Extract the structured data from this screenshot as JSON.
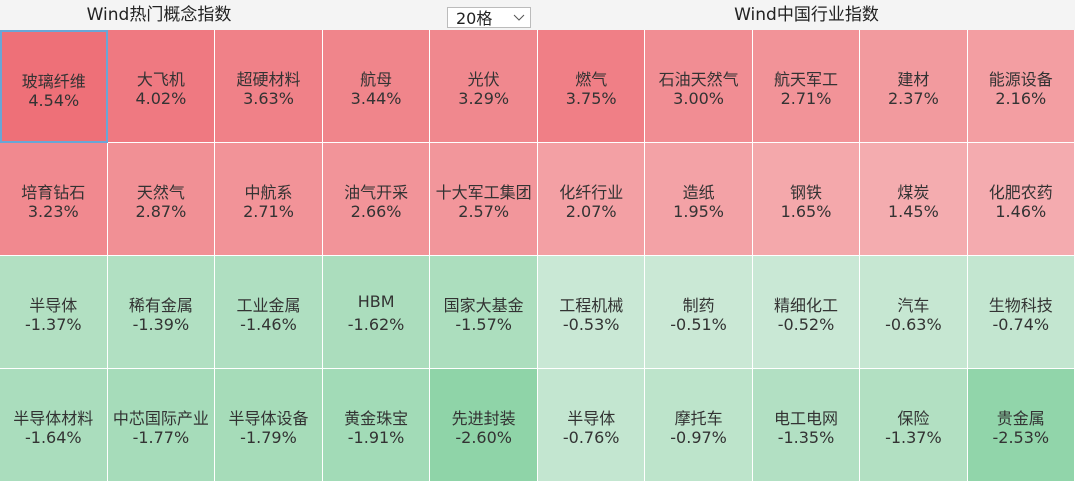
{
  "left_panel": {
    "title": "Wind热门概念指数",
    "dropdown": "20格",
    "cells": [
      {
        "name": "玻璃纤维",
        "change": "4.54%"
      },
      {
        "name": "大飞机",
        "change": "4.02%"
      },
      {
        "name": "超硬材料",
        "change": "3.63%"
      },
      {
        "name": "航母",
        "change": "3.44%"
      },
      {
        "name": "光伏",
        "change": "3.29%"
      },
      {
        "name": "培育钻石",
        "change": "3.23%"
      },
      {
        "name": "天然气",
        "change": "2.87%"
      },
      {
        "name": "中航系",
        "change": "2.71%"
      },
      {
        "name": "油气开采",
        "change": "2.66%"
      },
      {
        "name": "十大军工集团",
        "change": "2.57%"
      },
      {
        "name": "半导体",
        "change": "-1.37%"
      },
      {
        "name": "稀有金属",
        "change": "-1.39%"
      },
      {
        "name": "工业金属",
        "change": "-1.46%"
      },
      {
        "name": "HBM",
        "change": "-1.62%"
      },
      {
        "name": "国家大基金",
        "change": "-1.57%"
      },
      {
        "name": "半导体材料",
        "change": "-1.64%"
      },
      {
        "name": "中芯国际产业",
        "change": "-1.77%"
      },
      {
        "name": "半导体设备",
        "change": "-1.79%"
      },
      {
        "name": "黄金珠宝",
        "change": "-1.91%"
      },
      {
        "name": "先进封装",
        "change": "-2.60%"
      }
    ]
  },
  "right_panel": {
    "title": "Wind中国行业指数",
    "cells": [
      {
        "name": "燃气",
        "change": "3.75%"
      },
      {
        "name": "石油天然气",
        "change": "3.00%"
      },
      {
        "name": "航天军工",
        "change": "2.71%"
      },
      {
        "name": "建材",
        "change": "2.37%"
      },
      {
        "name": "能源设备",
        "change": "2.16%"
      },
      {
        "name": "化纤行业",
        "change": "2.07%"
      },
      {
        "name": "造纸",
        "change": "1.95%"
      },
      {
        "name": "钢铁",
        "change": "1.65%"
      },
      {
        "name": "煤炭",
        "change": "1.45%"
      },
      {
        "name": "化肥农药",
        "change": "1.46%"
      },
      {
        "name": "工程机械",
        "change": "-0.53%"
      },
      {
        "name": "制药",
        "change": "-0.51%"
      },
      {
        "name": "精细化工",
        "change": "-0.52%"
      },
      {
        "name": "汽车",
        "change": "-0.63%"
      },
      {
        "name": "生物科技",
        "change": "-0.74%"
      },
      {
        "name": "半导体",
        "change": "-0.76%"
      },
      {
        "name": "摩托车",
        "change": "-0.97%"
      },
      {
        "name": "电工电网",
        "change": "-1.35%"
      },
      {
        "name": "保险",
        "change": "-1.37%"
      },
      {
        "name": "贵金属",
        "change": "-2.53%"
      }
    ]
  }
}
